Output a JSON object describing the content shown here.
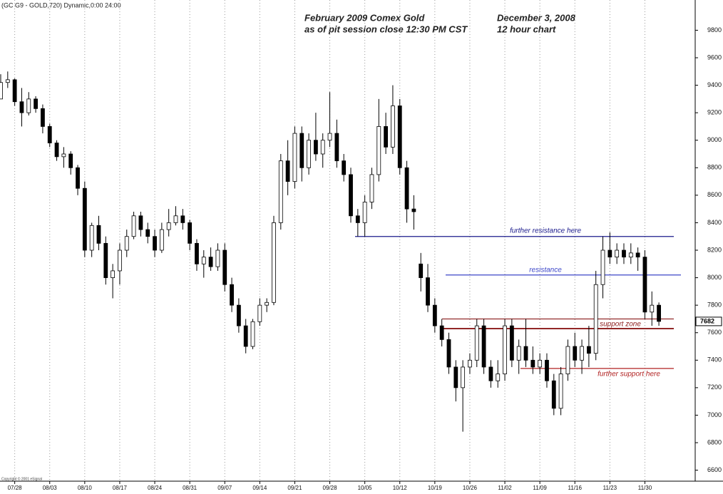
{
  "chart_data": {
    "type": "candlestick",
    "header": "(GC G9 - GOLD,720) Dynamic,0:00 24:00",
    "title": [
      "February 2009 Comex Gold",
      "as of pit session close 12:30 PM CST"
    ],
    "subtitle": [
      "December 3, 2008",
      "12 hour chart"
    ],
    "copyright": "Copyright © 2001 eSignal",
    "categories": [
      null,
      null,
      "07/28",
      null,
      null,
      null,
      null,
      "08/03",
      null,
      null,
      null,
      null,
      "08/10",
      null,
      null,
      null,
      null,
      "08/17",
      null,
      null,
      null,
      null,
      "08/24",
      null,
      null,
      null,
      null,
      "08/31",
      null,
      null,
      null,
      null,
      "09/07",
      null,
      null,
      null,
      null,
      "09/14",
      null,
      null,
      null,
      null,
      "09/21",
      null,
      null,
      null,
      null,
      "09/28",
      null,
      null,
      null,
      null,
      "10/05",
      null,
      null,
      null,
      null,
      "10/12",
      null,
      null,
      null,
      null,
      "10/19",
      null,
      null,
      null,
      null,
      "10/26",
      null,
      null,
      null,
      null,
      "11/02",
      null,
      null,
      null,
      null,
      "11/09",
      null,
      null,
      null,
      null,
      "11/16",
      null,
      null,
      null,
      null,
      "11/23",
      null,
      null,
      null,
      null,
      "11/30",
      null,
      null
    ],
    "open": [
      9300,
      9420,
      9440,
      9280,
      9200,
      9300,
      9230,
      9100,
      8980,
      8880,
      8900,
      8800,
      8650,
      8200,
      8380,
      8250,
      8000,
      8050,
      8200,
      8300,
      8450,
      8350,
      8300,
      8200,
      8350,
      8400,
      8450,
      8400,
      8250,
      8100,
      8150,
      8080,
      8200,
      7950,
      7800,
      7650,
      7500,
      7680,
      7800,
      7820,
      8400,
      8850,
      8700,
      9050,
      8800,
      9000,
      8900,
      9000,
      9050,
      8850,
      8750,
      8450,
      8400,
      8550,
      8750,
      9100,
      8950,
      9250,
      8800,
      8500,
      8100,
      8000,
      7800,
      7650,
      7550,
      7350,
      7200,
      7350,
      7400,
      7650,
      7350,
      7250,
      7300,
      7650,
      7400,
      7500,
      7400,
      7350,
      7400,
      7250,
      7050,
      7300,
      7500,
      7400,
      7500,
      7450,
      7950,
      8200,
      8150,
      8200,
      8150,
      8180,
      8150,
      7750,
      7800
    ],
    "high": [
      9480,
      9500,
      9450,
      9380,
      9350,
      9320,
      9260,
      9120,
      9000,
      8950,
      8920,
      8820,
      8700,
      8400,
      8450,
      8300,
      8100,
      8250,
      8350,
      8480,
      8480,
      8400,
      8350,
      8400,
      8500,
      8520,
      8500,
      8420,
      8280,
      8200,
      8220,
      8250,
      8250,
      8000,
      7850,
      7700,
      7700,
      7850,
      7850,
      8450,
      8900,
      9000,
      9100,
      9100,
      9050,
      9200,
      9050,
      9350,
      9150,
      8900,
      8800,
      8500,
      8600,
      8800,
      9300,
      9200,
      9400,
      9300,
      8850,
      8600,
      8180,
      8100,
      7850,
      7700,
      7600,
      7400,
      7400,
      7450,
      7700,
      7700,
      7400,
      7400,
      7700,
      7700,
      7550,
      7700,
      7500,
      7450,
      7450,
      7300,
      7350,
      7550,
      7600,
      7550,
      7650,
      8050,
      8300,
      8330,
      8250,
      8250,
      8250,
      8220,
      8200,
      7900,
      7820
    ],
    "low": [
      9300,
      9380,
      9250,
      9100,
      9180,
      9200,
      9050,
      8950,
      8850,
      8800,
      8750,
      8600,
      8150,
      8150,
      8200,
      7950,
      7850,
      7950,
      8150,
      8280,
      8300,
      8250,
      8150,
      8180,
      8300,
      8380,
      8350,
      8200,
      8050,
      8000,
      8050,
      8050,
      7900,
      7750,
      7600,
      7450,
      7480,
      7650,
      7750,
      7800,
      8350,
      8600,
      8650,
      8700,
      8750,
      8850,
      8800,
      8950,
      8800,
      8700,
      8400,
      8300,
      8300,
      8500,
      8700,
      8900,
      8900,
      8750,
      8400,
      8350,
      7900,
      7750,
      7600,
      7500,
      7300,
      7100,
      6880,
      7300,
      7350,
      7300,
      7200,
      7200,
      7250,
      7350,
      7300,
      7350,
      7300,
      7300,
      7200,
      7000,
      7000,
      7250,
      7350,
      7300,
      7350,
      7400,
      7850,
      8100,
      8100,
      8100,
      8100,
      8050,
      7700,
      7650,
      7650
    ],
    "close": [
      9420,
      9440,
      9280,
      9200,
      9300,
      9230,
      9100,
      8980,
      8880,
      8900,
      8800,
      8650,
      8200,
      8380,
      8250,
      8000,
      8050,
      8200,
      8300,
      8450,
      8350,
      8300,
      8200,
      8350,
      8400,
      8450,
      8400,
      8250,
      8100,
      8150,
      8080,
      8200,
      7950,
      7800,
      7650,
      7500,
      7680,
      7800,
      7820,
      8400,
      8850,
      8700,
      9050,
      8800,
      9000,
      8900,
      9000,
      9050,
      8850,
      8750,
      8450,
      8400,
      8550,
      8750,
      9100,
      8950,
      9250,
      8800,
      8500,
      8480,
      8000,
      7800,
      7650,
      7550,
      7350,
      7200,
      7350,
      7400,
      7650,
      7350,
      7250,
      7300,
      7650,
      7400,
      7500,
      7400,
      7350,
      7400,
      7250,
      7050,
      7300,
      7500,
      7400,
      7500,
      7450,
      7950,
      8200,
      8150,
      8200,
      8150,
      8180,
      8150,
      7750,
      7800,
      7682
    ],
    "levels": [
      {
        "value": 8300,
        "color": "#1a1a8c",
        "label": "further resistance  here"
      },
      {
        "value": 8020,
        "color": "#3b45c8",
        "label": "resistance"
      },
      {
        "value": 7700,
        "color": "#8b1a1a"
      },
      {
        "value": 7630,
        "color": "#8b1a1a",
        "label": "support zone"
      },
      {
        "value": 7340,
        "color": "#b02020",
        "label": "further support here"
      }
    ],
    "ylim": [
      6520,
      10020
    ],
    "yticks": [
      6600,
      6800,
      7000,
      7200,
      7400,
      7600,
      7800,
      8000,
      8200,
      8400,
      8600,
      8800,
      9000,
      9200,
      9400,
      9600,
      9800
    ],
    "grid": true
  }
}
